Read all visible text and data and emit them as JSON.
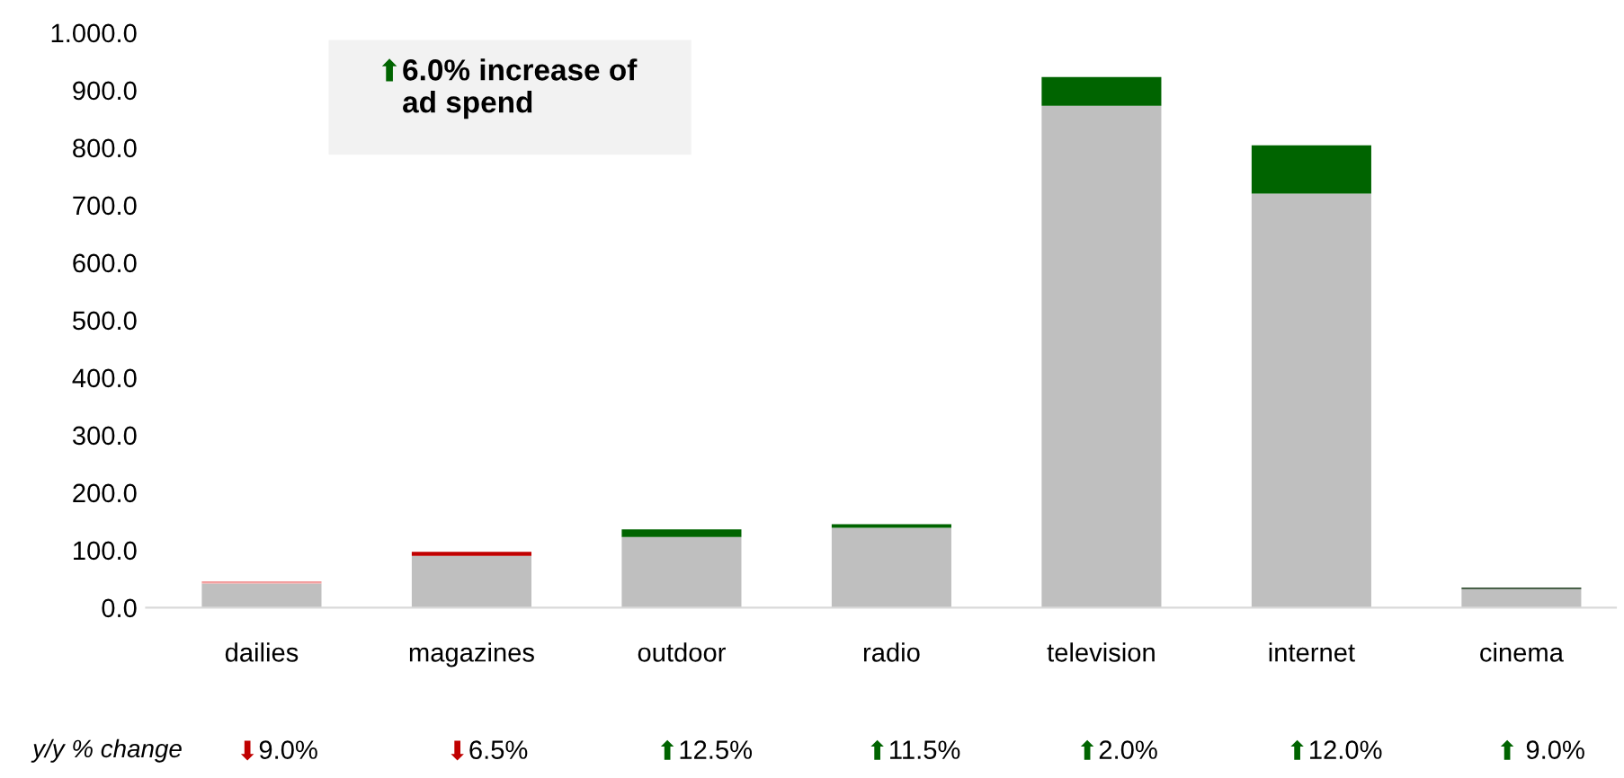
{
  "chart_data": {
    "type": "bar",
    "stacked": true,
    "categories": [
      "dailies",
      "magazines",
      "outdoor",
      "radio",
      "television",
      "internet",
      "cinema"
    ],
    "series": [
      {
        "color": "#bfbfbf",
        "values": [
          42,
          90,
          123,
          139,
          873,
          720,
          32
        ]
      },
      {
        "colors": [
          "#f4a0a0",
          "#c00000",
          "#006400",
          "#006400",
          "#006400",
          "#006400",
          "#2e4a2e"
        ],
        "values": [
          4,
          7,
          13,
          6,
          50,
          84,
          3
        ]
      }
    ],
    "ylim": [
      0,
      1000
    ],
    "yticks": [
      {
        "value": 0,
        "label": "0.0"
      },
      {
        "value": 100,
        "label": "100.0"
      },
      {
        "value": 200,
        "label": "200.0"
      },
      {
        "value": 300,
        "label": "300.0"
      },
      {
        "value": 400,
        "label": "400.0"
      },
      {
        "value": 500,
        "label": "500.0"
      },
      {
        "value": 600,
        "label": "600.0"
      },
      {
        "value": 700,
        "label": "700.0"
      },
      {
        "value": 800,
        "label": "800.0"
      },
      {
        "value": 900,
        "label": "900.0"
      },
      {
        "value": 1000,
        "label": "1.000.0"
      }
    ],
    "grid": false,
    "annotations": [
      "⬆6.0% increase of\nad spend",
      "y/y % change",
      "⬇9.0%",
      "⬇6.5%",
      "⬆12.5%",
      "⬆11.5%",
      "⬆2.0%",
      "⬆12.0%",
      "⬆ 9.0%"
    ]
  }
}
